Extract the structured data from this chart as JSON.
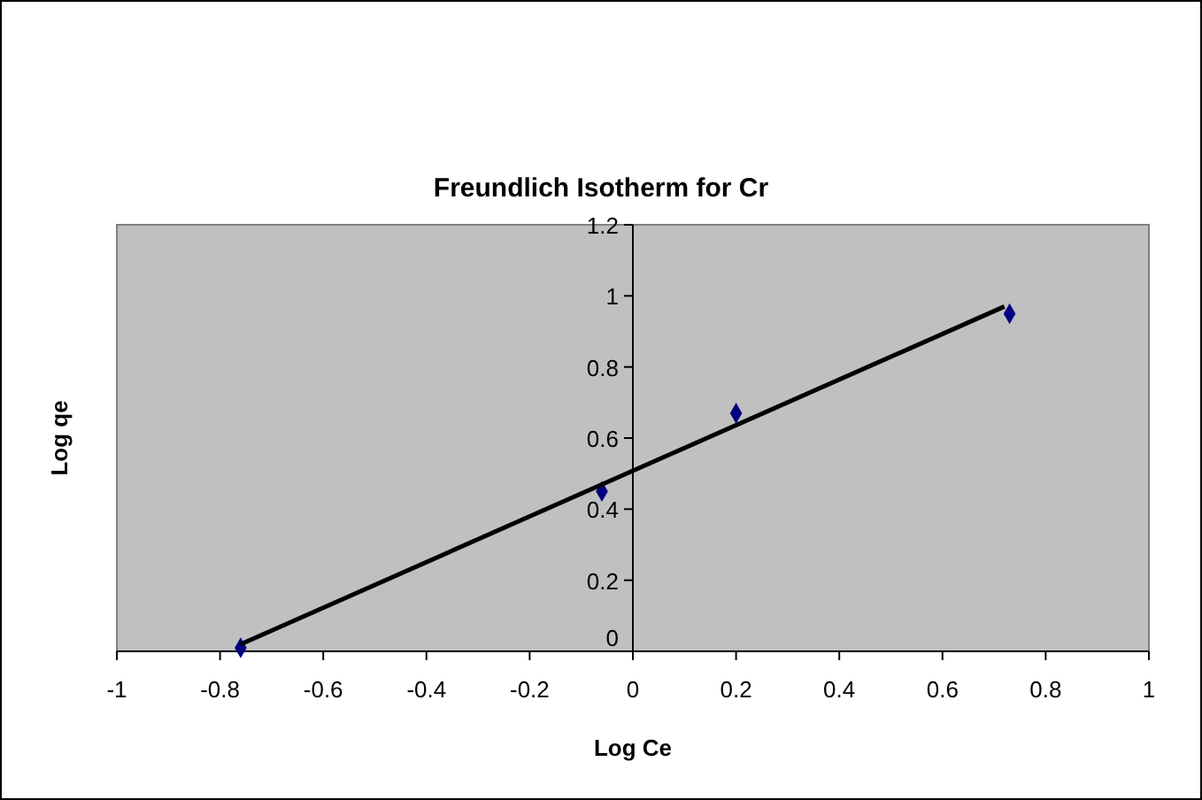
{
  "chart_data": {
    "type": "scatter",
    "title": "Freundlich Isotherm for Cr",
    "xlabel": "Log Ce",
    "ylabel": "Log qe",
    "xlim": [
      -1,
      1
    ],
    "xticks": [
      -1,
      -0.8,
      -0.6,
      -0.4,
      -0.2,
      0,
      0.2,
      0.4,
      0.6,
      0.8,
      1
    ],
    "ylim": [
      0,
      1.2
    ],
    "yticks": [
      0,
      0.2,
      0.4,
      0.6,
      0.8,
      1,
      1.2
    ],
    "grid": false,
    "marker": "diamond",
    "series": [
      {
        "color": "#000080",
        "x": [
          -0.76,
          -0.06,
          0.2,
          0.73
        ],
        "values": [
          0.01,
          0.45,
          0.67,
          0.95
        ]
      },
      {
        "type": "line",
        "color": "#000000",
        "marker": "none",
        "line_style": "solid",
        "x": [
          -0.76,
          0.72
        ],
        "values": [
          0.02,
          0.97
        ]
      }
    ]
  }
}
